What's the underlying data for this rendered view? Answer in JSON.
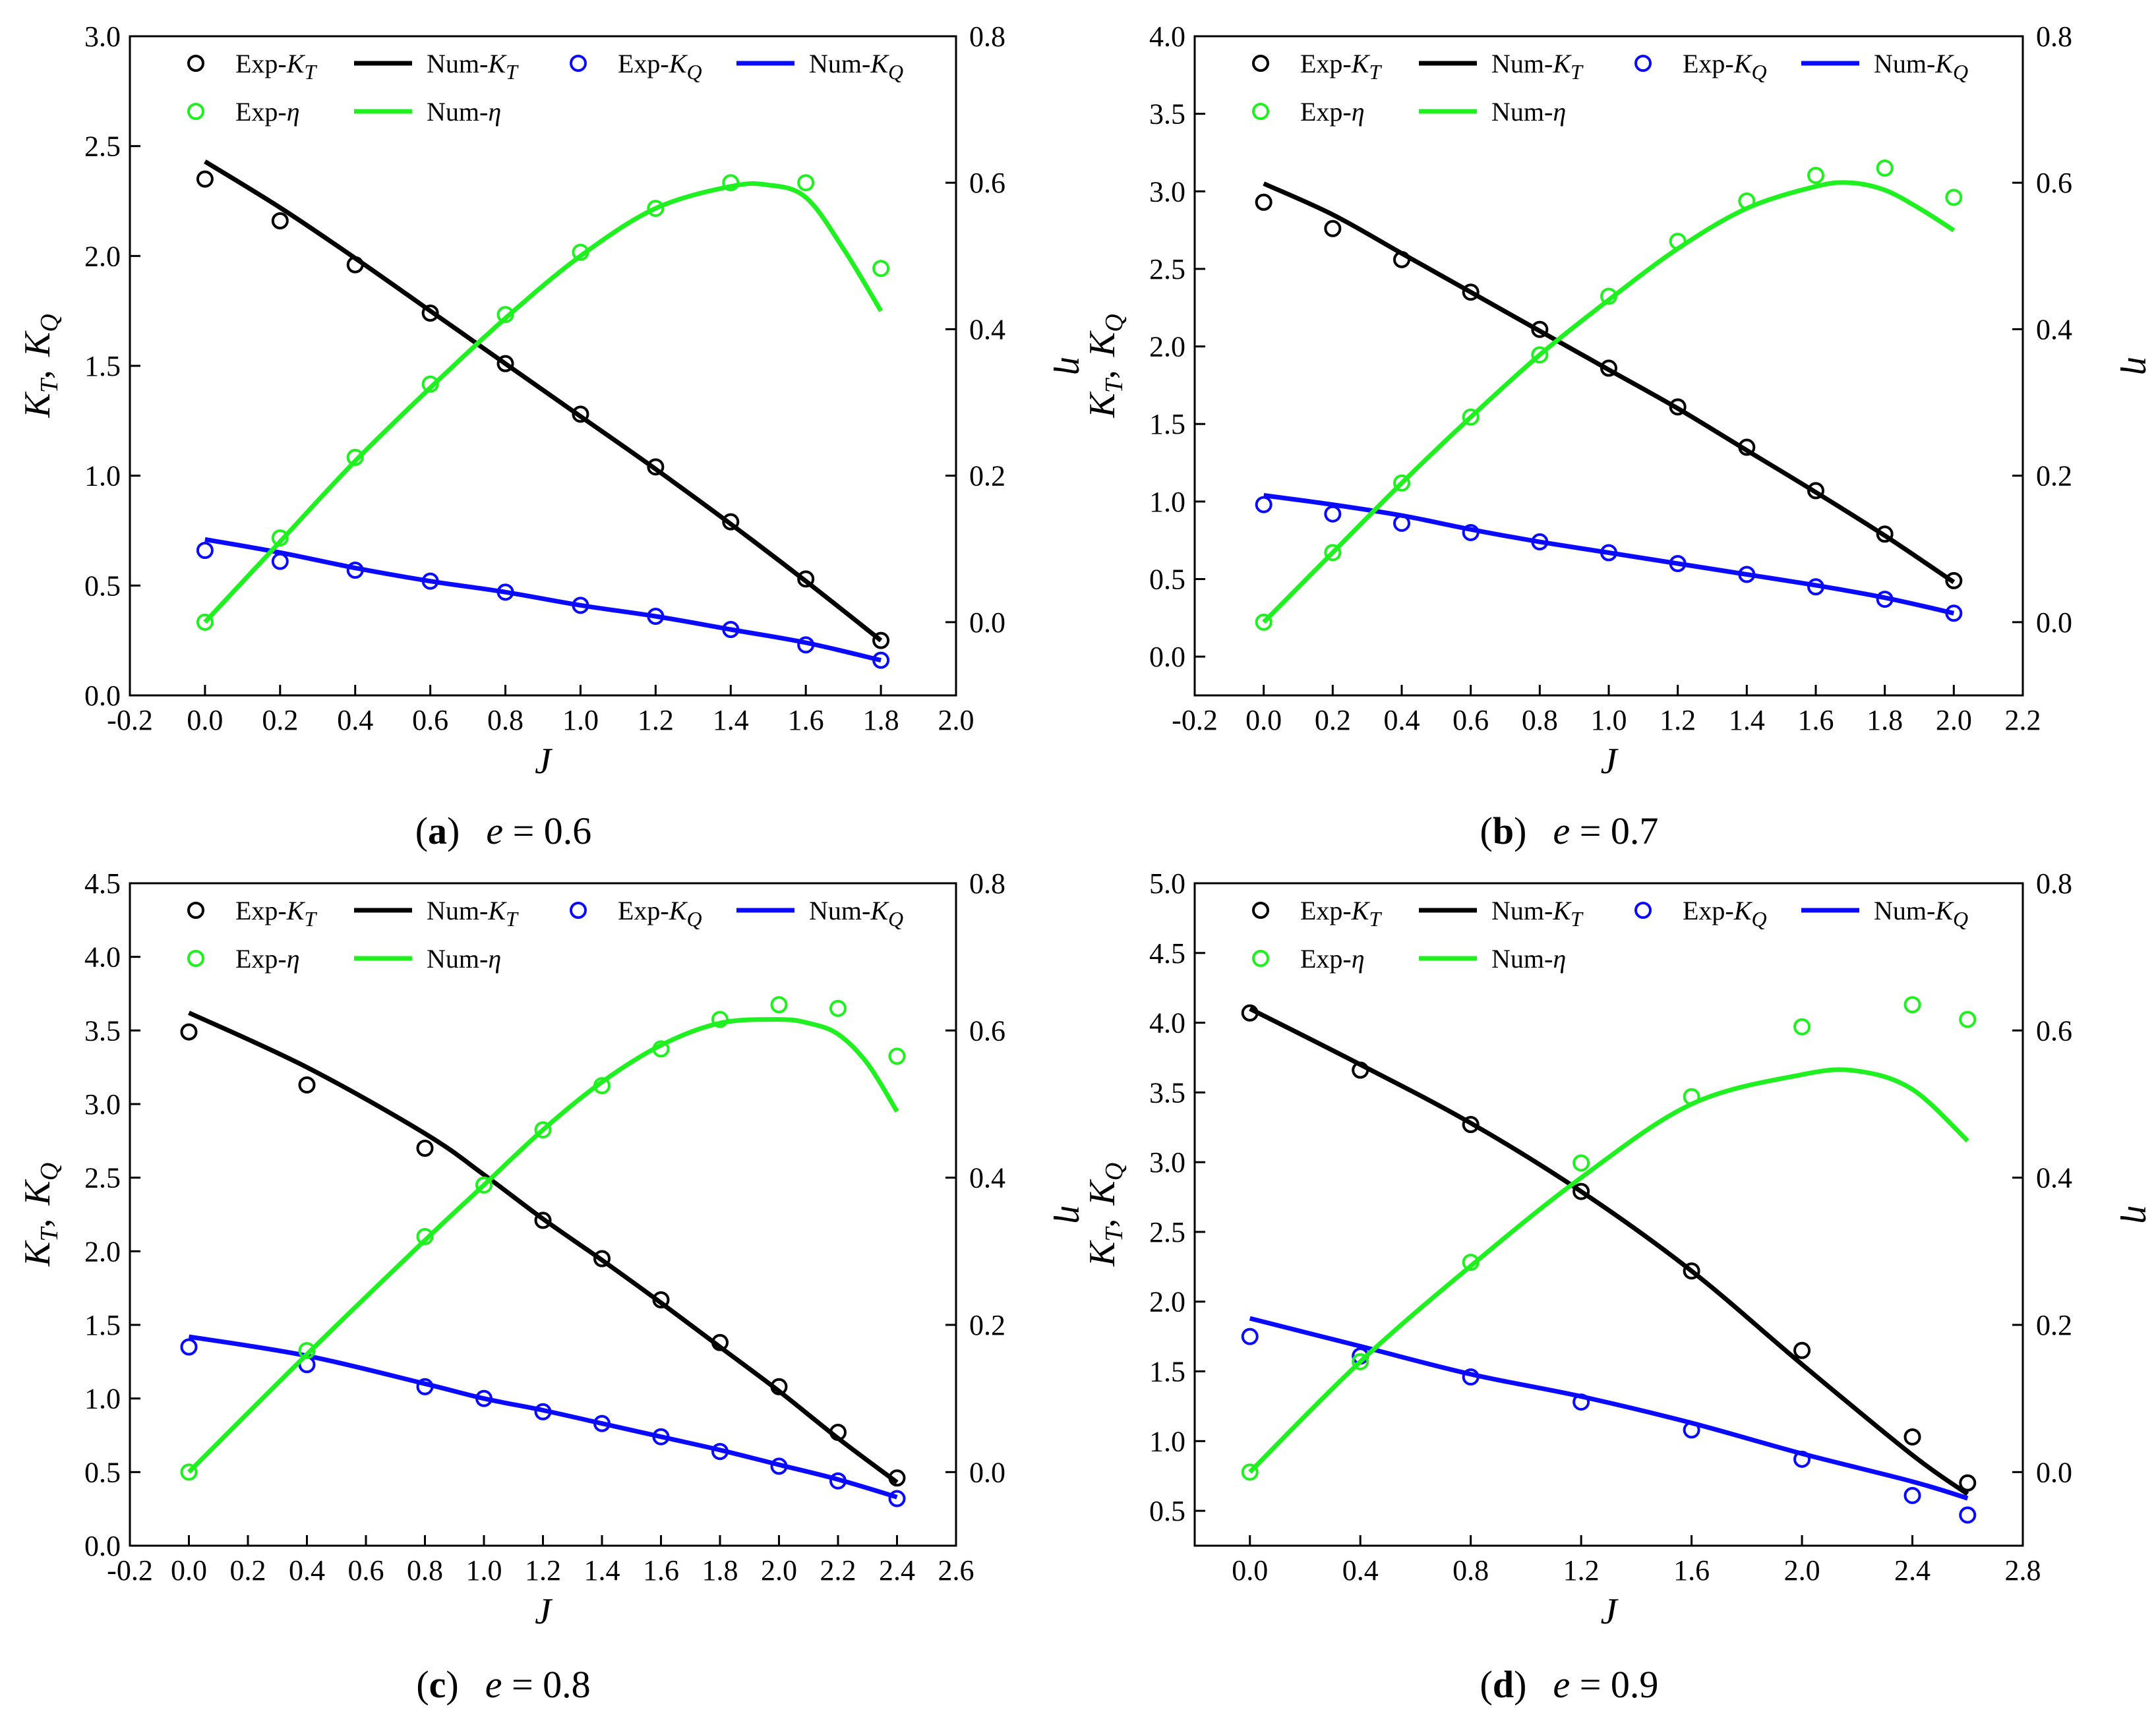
{
  "figure_title": "",
  "legend": {
    "exp_kt": [
      "Exp-",
      "K",
      "T"
    ],
    "num_kt": [
      "Num-",
      "K",
      "T"
    ],
    "exp_kq": [
      "Exp-",
      "K",
      "Q"
    ],
    "num_kq": [
      "Num-",
      "K",
      "Q"
    ],
    "exp_eta": [
      "Exp-",
      "η"
    ],
    "num_eta": [
      "Num-",
      "η"
    ]
  },
  "colors": {
    "kt": "#000000",
    "kq": "#0a0aff",
    "eta": "#1ff01f"
  },
  "chart_data": [
    {
      "type": "line",
      "caption_label": "a",
      "caption_eq": "e = 0.6",
      "xlabel": "J",
      "ylabel": [
        "K",
        "T",
        ", ",
        "K",
        "Q"
      ],
      "y2label": "η",
      "xlim": [
        -0.2,
        2.0
      ],
      "ylim": [
        0,
        3.0
      ],
      "y2lim": [
        -0.1,
        0.8
      ],
      "xticks": [
        "-0.2",
        "0.0",
        "0.2",
        "0.4",
        "0.6",
        "0.8",
        "1.0",
        "1.2",
        "1.4",
        "1.6",
        "1.8",
        "2.0"
      ],
      "yticks": [
        "0.0",
        "0.5",
        "1.0",
        "1.5",
        "2.0",
        "2.5",
        "3.0"
      ],
      "y2ticks": [
        "0.0",
        "0.2",
        "0.4",
        "0.6",
        "0.8"
      ],
      "series": [
        {
          "name": "Exp-KT",
          "kind": "points",
          "axis": "left",
          "color": "#000000",
          "x": [
            0,
            0.2,
            0.4,
            0.6,
            0.8,
            1.0,
            1.2,
            1.4,
            1.6,
            1.8
          ],
          "y": [
            2.35,
            2.16,
            1.96,
            1.74,
            1.51,
            1.28,
            1.04,
            0.79,
            0.53,
            0.25
          ]
        },
        {
          "name": "Num-KT",
          "kind": "line",
          "axis": "left",
          "color": "#000000",
          "x": [
            0,
            0.2,
            0.4,
            0.6,
            0.8,
            1.0,
            1.2,
            1.4,
            1.6,
            1.8
          ],
          "y": [
            2.43,
            2.22,
            1.99,
            1.75,
            1.51,
            1.27,
            1.03,
            0.78,
            0.52,
            0.25
          ]
        },
        {
          "name": "Exp-KQ",
          "kind": "points",
          "axis": "left",
          "color": "#0a0aff",
          "x": [
            0,
            0.2,
            0.4,
            0.6,
            0.8,
            1.0,
            1.2,
            1.4,
            1.6,
            1.8
          ],
          "y": [
            0.66,
            0.61,
            0.57,
            0.52,
            0.47,
            0.41,
            0.36,
            0.3,
            0.23,
            0.16
          ]
        },
        {
          "name": "Num-KQ",
          "kind": "line",
          "axis": "left",
          "color": "#0a0aff",
          "x": [
            0,
            0.2,
            0.4,
            0.6,
            0.8,
            1.0,
            1.2,
            1.4,
            1.6,
            1.8
          ],
          "y": [
            0.71,
            0.65,
            0.58,
            0.52,
            0.47,
            0.41,
            0.36,
            0.3,
            0.24,
            0.16
          ]
        },
        {
          "name": "Exp-η",
          "kind": "points",
          "axis": "right",
          "color": "#1ff01f",
          "x": [
            0,
            0.2,
            0.4,
            0.6,
            0.8,
            1.0,
            1.2,
            1.4,
            1.6,
            1.8
          ],
          "y": [
            0.0,
            0.115,
            0.225,
            0.325,
            0.42,
            0.505,
            0.565,
            0.6,
            0.6,
            0.483
          ]
        },
        {
          "name": "Num-η",
          "kind": "line",
          "axis": "right",
          "color": "#1ff01f",
          "x": [
            0,
            0.2,
            0.4,
            0.6,
            0.8,
            1.0,
            1.2,
            1.4,
            1.5,
            1.6,
            1.7,
            1.8
          ],
          "y": [
            0.0,
            0.11,
            0.22,
            0.32,
            0.415,
            0.5,
            0.565,
            0.595,
            0.597,
            0.58,
            0.51,
            0.425
          ]
        }
      ]
    },
    {
      "type": "line",
      "caption_label": "b",
      "caption_eq": "e = 0.7",
      "xlabel": "J",
      "ylabel": [
        "K",
        "T",
        ", ",
        "K",
        "Q"
      ],
      "y2label": "η",
      "xlim": [
        -0.2,
        2.2
      ],
      "ylim": [
        -0.25,
        4.0
      ],
      "y2lim": [
        -0.1,
        0.8
      ],
      "xticks": [
        "-0.2",
        "0.0",
        "0.2",
        "0.4",
        "0.6",
        "0.8",
        "1.0",
        "1.2",
        "1.4",
        "1.6",
        "1.8",
        "2.0",
        "2.2"
      ],
      "yticks": [
        "0.0",
        "0.5",
        "1.0",
        "1.5",
        "2.0",
        "2.5",
        "3.0",
        "3.5",
        "4.0"
      ],
      "y2ticks": [
        "0.0",
        "0.2",
        "0.4",
        "0.6",
        "0.8"
      ],
      "series": [
        {
          "name": "Exp-KT",
          "kind": "points",
          "axis": "left",
          "color": "#000000",
          "x": [
            0,
            0.2,
            0.4,
            0.6,
            0.8,
            1.0,
            1.2,
            1.4,
            1.6,
            1.8,
            2.0
          ],
          "y": [
            2.93,
            2.76,
            2.56,
            2.35,
            2.11,
            1.86,
            1.61,
            1.35,
            1.07,
            0.79,
            0.49
          ]
        },
        {
          "name": "Num-KT",
          "kind": "line",
          "axis": "left",
          "color": "#000000",
          "x": [
            0,
            0.2,
            0.4,
            0.6,
            0.8,
            1.0,
            1.2,
            1.4,
            1.6,
            1.8,
            2.0
          ],
          "y": [
            3.05,
            2.85,
            2.6,
            2.35,
            2.1,
            1.85,
            1.6,
            1.33,
            1.06,
            0.78,
            0.48
          ]
        },
        {
          "name": "Exp-KQ",
          "kind": "points",
          "axis": "left",
          "color": "#0a0aff",
          "x": [
            0,
            0.2,
            0.4,
            0.6,
            0.8,
            1.0,
            1.2,
            1.4,
            1.6,
            1.8,
            2.0
          ],
          "y": [
            0.98,
            0.92,
            0.86,
            0.8,
            0.74,
            0.67,
            0.6,
            0.53,
            0.45,
            0.37,
            0.28
          ]
        },
        {
          "name": "Num-KQ",
          "kind": "line",
          "axis": "left",
          "color": "#0a0aff",
          "x": [
            0,
            0.2,
            0.4,
            0.6,
            0.8,
            1.0,
            1.2,
            1.4,
            1.6,
            1.8,
            2.0
          ],
          "y": [
            1.04,
            0.98,
            0.91,
            0.82,
            0.74,
            0.67,
            0.6,
            0.53,
            0.46,
            0.38,
            0.28
          ]
        },
        {
          "name": "Exp-η",
          "kind": "points",
          "axis": "right",
          "color": "#1ff01f",
          "x": [
            0,
            0.2,
            0.4,
            0.6,
            0.8,
            1.0,
            1.2,
            1.4,
            1.6,
            1.8,
            2.0
          ],
          "y": [
            0.0,
            0.095,
            0.19,
            0.28,
            0.365,
            0.445,
            0.52,
            0.575,
            0.61,
            0.62,
            0.58
          ]
        },
        {
          "name": "Num-η",
          "kind": "line",
          "axis": "right",
          "color": "#1ff01f",
          "x": [
            0,
            0.2,
            0.4,
            0.6,
            0.8,
            1.0,
            1.2,
            1.4,
            1.6,
            1.7,
            1.8,
            1.9,
            2.0
          ],
          "y": [
            0.0,
            0.095,
            0.19,
            0.28,
            0.365,
            0.44,
            0.51,
            0.565,
            0.595,
            0.6,
            0.59,
            0.565,
            0.535
          ]
        }
      ]
    },
    {
      "type": "line",
      "caption_label": "c",
      "caption_eq": "e = 0.8",
      "xlabel": "J",
      "ylabel": [
        "K",
        "T",
        ", ",
        "K",
        "Q"
      ],
      "y2label": "η",
      "xlim": [
        -0.2,
        2.6
      ],
      "ylim": [
        0,
        4.5
      ],
      "y2lim": [
        -0.1,
        0.8
      ],
      "xticks": [
        "-0.2",
        "0.0",
        "0.2",
        "0.4",
        "0.6",
        "0.8",
        "1.0",
        "1.2",
        "1.4",
        "1.6",
        "1.8",
        "2.0",
        "2.2",
        "2.4",
        "2.6"
      ],
      "yticks": [
        "0.0",
        "0.5",
        "1.0",
        "1.5",
        "2.0",
        "2.5",
        "3.0",
        "3.5",
        "4.0",
        "4.5"
      ],
      "y2ticks": [
        "0.0",
        "0.2",
        "0.4",
        "0.6",
        "0.8"
      ],
      "series": [
        {
          "name": "Exp-KT",
          "kind": "points",
          "axis": "left",
          "color": "#000000",
          "x": [
            0,
            0.4,
            0.8,
            1.2,
            1.4,
            1.6,
            1.8,
            2.0,
            2.2,
            2.4
          ],
          "y": [
            3.49,
            3.13,
            2.7,
            2.21,
            1.95,
            1.67,
            1.38,
            1.08,
            0.77,
            0.46
          ]
        },
        {
          "name": "Num-KT",
          "kind": "line",
          "axis": "left",
          "color": "#000000",
          "x": [
            0,
            0.4,
            0.8,
            1.0,
            1.2,
            1.4,
            1.6,
            1.8,
            2.0,
            2.2,
            2.4
          ],
          "y": [
            3.62,
            3.25,
            2.8,
            2.52,
            2.22,
            1.94,
            1.65,
            1.35,
            1.05,
            0.73,
            0.43
          ]
        },
        {
          "name": "Exp-KQ",
          "kind": "points",
          "axis": "left",
          "color": "#0a0aff",
          "x": [
            0,
            0.4,
            0.8,
            1.0,
            1.2,
            1.4,
            1.6,
            1.8,
            2.0,
            2.2,
            2.4
          ],
          "y": [
            1.35,
            1.23,
            1.08,
            1.0,
            0.91,
            0.83,
            0.74,
            0.64,
            0.54,
            0.44,
            0.32
          ]
        },
        {
          "name": "Num-KQ",
          "kind": "line",
          "axis": "left",
          "color": "#0a0aff",
          "x": [
            0,
            0.4,
            0.8,
            1.0,
            1.2,
            1.4,
            1.6,
            1.8,
            2.0,
            2.2,
            2.4
          ],
          "y": [
            1.42,
            1.29,
            1.1,
            1.0,
            0.92,
            0.83,
            0.74,
            0.65,
            0.55,
            0.45,
            0.33
          ]
        },
        {
          "name": "Exp-η",
          "kind": "points",
          "axis": "right",
          "color": "#1ff01f",
          "x": [
            0,
            0.4,
            0.8,
            1.0,
            1.2,
            1.4,
            1.6,
            1.8,
            2.0,
            2.2,
            2.4
          ],
          "y": [
            0.0,
            0.165,
            0.32,
            0.39,
            0.465,
            0.525,
            0.575,
            0.615,
            0.635,
            0.63,
            0.565
          ]
        },
        {
          "name": "Num-η",
          "kind": "line",
          "axis": "right",
          "color": "#1ff01f",
          "x": [
            0,
            0.4,
            0.8,
            1.0,
            1.2,
            1.4,
            1.6,
            1.8,
            2.0,
            2.1,
            2.2,
            2.3,
            2.4
          ],
          "y": [
            0.0,
            0.16,
            0.315,
            0.39,
            0.465,
            0.53,
            0.58,
            0.61,
            0.615,
            0.61,
            0.595,
            0.555,
            0.49
          ]
        }
      ]
    },
    {
      "type": "line",
      "caption_label": "d",
      "caption_eq": "e = 0.9",
      "xlabel": "J",
      "ylabel": [
        "K",
        "T",
        ", ",
        "K",
        "Q"
      ],
      "y2label": "η",
      "xlim": [
        -0.2,
        2.8
      ],
      "ylim": [
        0.25,
        5.0
      ],
      "y2lim": [
        -0.1,
        0.8
      ],
      "xticks": [
        "0.0",
        "0.4",
        "0.8",
        "1.2",
        "1.6",
        "2.0",
        "2.4",
        "2.8"
      ],
      "yticks": [
        "0.5",
        "1.0",
        "1.5",
        "2.0",
        "2.5",
        "3.0",
        "3.5",
        "4.0",
        "4.5",
        "5.0"
      ],
      "y2ticks": [
        "0.0",
        "0.2",
        "0.4",
        "0.6",
        "0.8"
      ],
      "series": [
        {
          "name": "Exp-KT",
          "kind": "points",
          "axis": "left",
          "color": "#000000",
          "x": [
            0,
            0.4,
            0.8,
            1.2,
            1.6,
            2.0,
            2.4,
            2.6
          ],
          "y": [
            4.07,
            3.66,
            3.27,
            2.79,
            2.22,
            1.65,
            1.03,
            0.7
          ]
        },
        {
          "name": "Num-KT",
          "kind": "line",
          "axis": "left",
          "color": "#000000",
          "x": [
            0,
            0.4,
            0.8,
            1.2,
            1.6,
            2.0,
            2.4,
            2.6
          ],
          "y": [
            4.1,
            3.7,
            3.28,
            2.79,
            2.22,
            1.55,
            0.9,
            0.62
          ]
        },
        {
          "name": "Exp-KQ",
          "kind": "points",
          "axis": "left",
          "color": "#0a0aff",
          "x": [
            0,
            0.4,
            0.8,
            1.2,
            1.6,
            2.0,
            2.4,
            2.6
          ],
          "y": [
            1.75,
            1.61,
            1.46,
            1.28,
            1.08,
            0.87,
            0.61,
            0.47
          ]
        },
        {
          "name": "Num-KQ",
          "kind": "line",
          "axis": "left",
          "color": "#0a0aff",
          "x": [
            0,
            0.4,
            0.8,
            1.2,
            1.6,
            2.0,
            2.4,
            2.6
          ],
          "y": [
            1.88,
            1.68,
            1.48,
            1.32,
            1.13,
            0.91,
            0.71,
            0.59
          ]
        },
        {
          "name": "Exp-η",
          "kind": "points",
          "axis": "right",
          "color": "#1ff01f",
          "x": [
            0,
            0.4,
            0.8,
            1.2,
            1.6,
            2.0,
            2.4,
            2.6
          ],
          "y": [
            0.0,
            0.15,
            0.285,
            0.42,
            0.51,
            0.605,
            0.635,
            0.615
          ]
        },
        {
          "name": "Num-η",
          "kind": "line",
          "axis": "right",
          "color": "#1ff01f",
          "x": [
            0,
            0.4,
            0.8,
            1.2,
            1.6,
            2.0,
            2.2,
            2.4,
            2.6
          ],
          "y": [
            0.0,
            0.15,
            0.28,
            0.4,
            0.5,
            0.54,
            0.545,
            0.52,
            0.45
          ]
        }
      ]
    }
  ]
}
